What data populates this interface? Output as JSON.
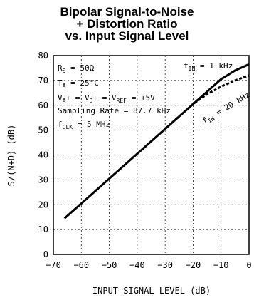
{
  "chart_data": {
    "type": "line",
    "title": [
      "Bipolar Signal-to-Noise",
      "+ Distortion Ratio",
      "vs. Input Signal Level"
    ],
    "xlabel": "INPUT SIGNAL LEVEL (dB)",
    "ylabel": "S/(N+D) (dB)",
    "xlim": [
      -70,
      0
    ],
    "ylim": [
      0,
      80
    ],
    "xticks": [
      -70,
      -60,
      -50,
      -40,
      -30,
      -20,
      -10,
      0
    ],
    "yticks": [
      0,
      10,
      20,
      30,
      40,
      50,
      60,
      70,
      80
    ],
    "grid": true,
    "series": [
      {
        "name": "fIN = 1 kHz",
        "style": "solid",
        "color": "#000000",
        "x": [
          -66,
          -60,
          -50,
          -40,
          -30,
          -20,
          -15,
          -10,
          -5,
          0
        ],
        "y": [
          14.5,
          20.5,
          30.5,
          40.5,
          50.5,
          60.5,
          65.5,
          70.5,
          74,
          76.5
        ]
      },
      {
        "name": "fIN = 20 kHz",
        "style": "dashed",
        "color": "#000000",
        "x": [
          -22,
          -20,
          -15,
          -10,
          -5,
          0
        ],
        "y": [
          58.5,
          60.5,
          64.5,
          67.5,
          70,
          72
        ]
      }
    ],
    "annotations": {
      "rs": {
        "main": "R",
        "sub": "S",
        "rest": " = 50Ω"
      },
      "ta": {
        "main": "T",
        "sub": "A",
        "rest": " = 25°C"
      },
      "supply": {
        "parts": [
          [
            "V",
            ""
          ],
          [
            "A",
            "sub"
          ],
          [
            "+ = V",
            ""
          ],
          [
            "D",
            "sub"
          ],
          [
            "+ = V",
            ""
          ],
          [
            "REF",
            "sub"
          ],
          [
            " = +5V",
            ""
          ]
        ]
      },
      "sampling": "Sampling Rate = 87.7 kHz",
      "fclk": {
        "main": "f",
        "sub": "CLK",
        "rest": " = 5 MHz"
      },
      "fin1": {
        "main": "f",
        "sub": "IN",
        "rest": " = 1 kHz"
      },
      "fin20": {
        "main": "f",
        "sub": "IN",
        "rest": " = 20 kHz"
      }
    }
  }
}
